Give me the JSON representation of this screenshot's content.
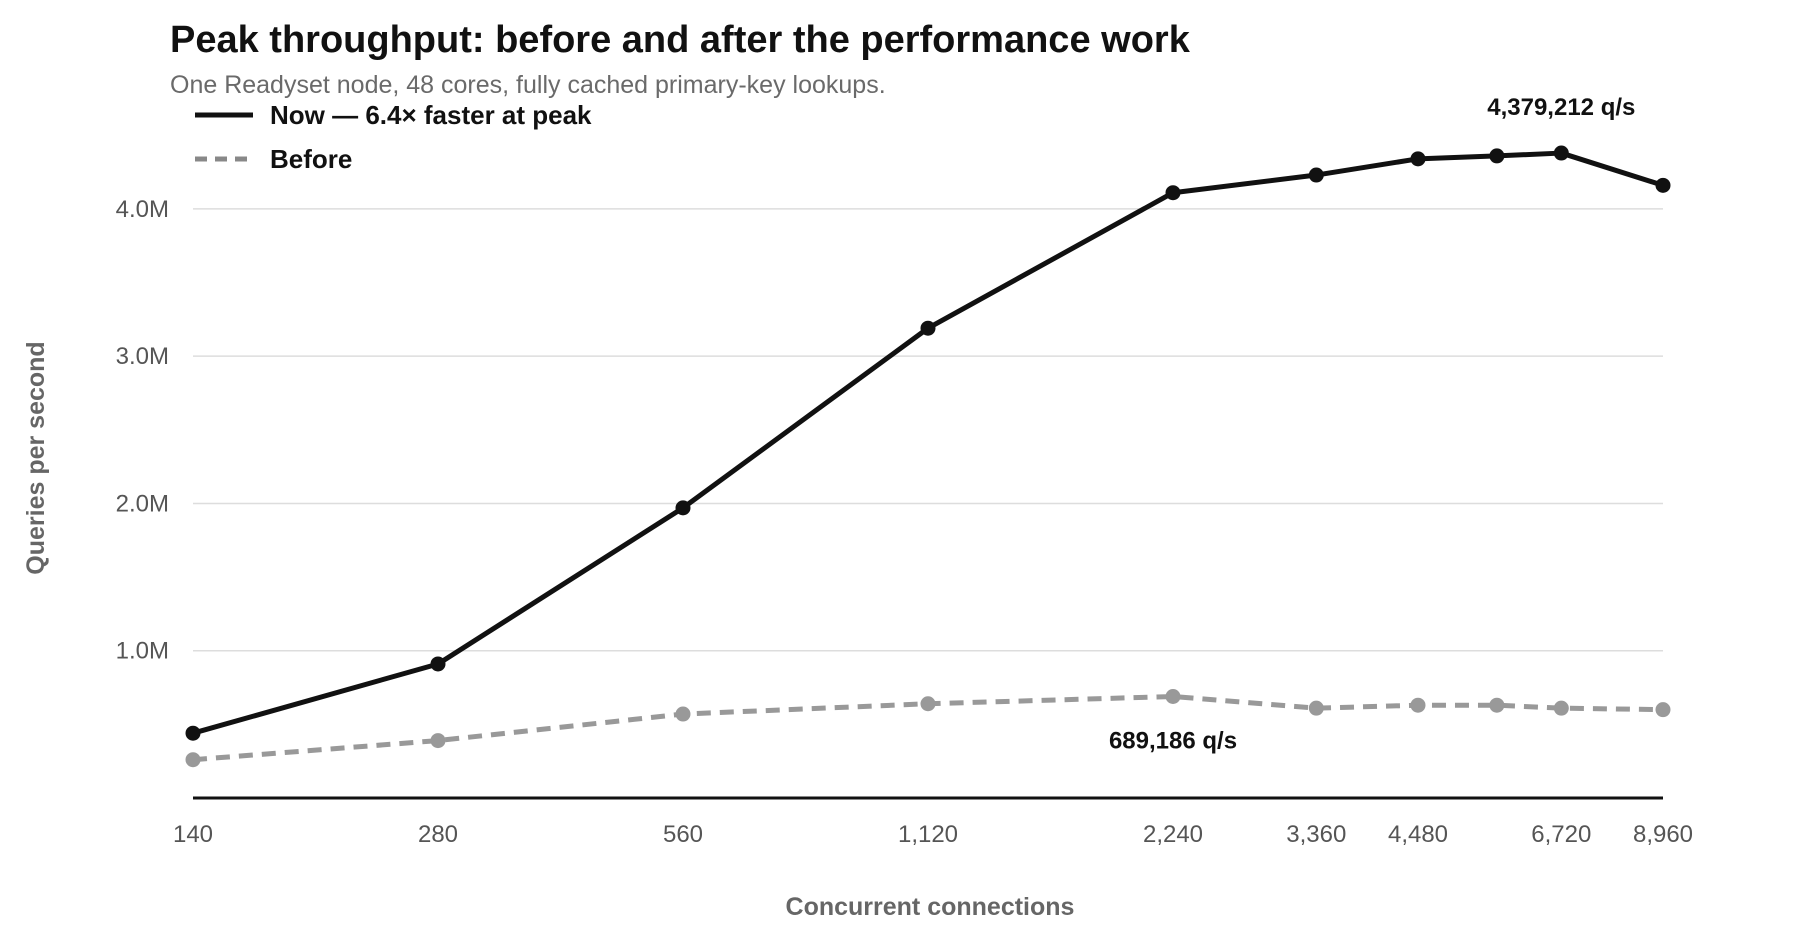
{
  "chart_data": {
    "type": "line",
    "title": "Peak throughput: before and after the performance work",
    "subtitle": "One Readyset node, 48 cores, fully cached primary-key lookups.",
    "xlabel": "Concurrent connections",
    "ylabel": "Queries per second",
    "x_scale": "log",
    "x": [
      140,
      280,
      560,
      1120,
      2240,
      3360,
      4480,
      5600,
      6720,
      8960
    ],
    "x_tick_values": [
      140,
      280,
      560,
      1120,
      2240,
      3360,
      4480,
      6720,
      8960
    ],
    "x_tick_labels": [
      "140",
      "280",
      "560",
      "1,120",
      "2,240",
      "3,360",
      "4,480",
      "6,720",
      "8,960"
    ],
    "ylim": [
      0,
      4400000
    ],
    "y_tick_values": [
      1000000,
      2000000,
      3000000,
      4000000
    ],
    "y_tick_labels": [
      "1.0M",
      "2.0M",
      "3.0M",
      "4.0M"
    ],
    "grid": true,
    "legend_position": "top-left",
    "series": [
      {
        "name": "Now — 6.4× faster at peak",
        "color": "#111111",
        "style": "solid",
        "values": [
          440000,
          910000,
          1970000,
          3190000,
          4110000,
          4230000,
          4340000,
          4360000,
          4379212,
          4160000
        ]
      },
      {
        "name": "Before",
        "color": "#999999",
        "style": "dashed",
        "values": [
          260000,
          390000,
          570000,
          640000,
          689186,
          610000,
          630000,
          630000,
          610000,
          600000
        ]
      }
    ],
    "annotations": [
      {
        "series": 0,
        "index": 8,
        "text": "4,379,212 q/s",
        "position": "above"
      },
      {
        "series": 1,
        "index": 4,
        "text": "689,186 q/s",
        "position": "below"
      }
    ]
  }
}
